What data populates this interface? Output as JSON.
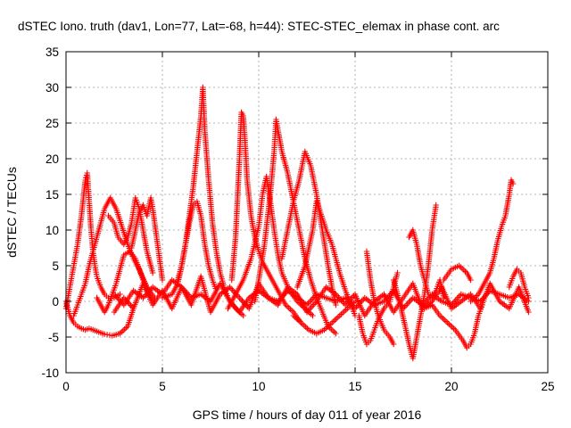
{
  "chart_data": {
    "type": "scatter",
    "title": "dSTEC Iono. truth (dav1, Lon=77, Lat=-68, h=44): STEC-STEC_elemax in phase cont. arc",
    "xlabel": "GPS time / hours of day 011 of year 2016",
    "ylabel": "dSTEC  / TECUs",
    "xlim": [
      0,
      25
    ],
    "ylim": [
      -10,
      35
    ],
    "x_ticks": [
      "0",
      "5",
      "10",
      "15",
      "20",
      "25"
    ],
    "y_ticks": [
      "-10",
      "-5",
      "0",
      "5",
      "10",
      "15",
      "20",
      "25",
      "30",
      "35"
    ],
    "grid": true,
    "marker": "+",
    "color": "#ff0000",
    "series": [
      {
        "x": [
          0.0,
          0.2,
          0.4,
          0.6,
          0.8,
          1.0,
          1.2,
          1.6,
          2.0,
          2.4,
          2.8,
          3.2,
          3.5
        ],
        "y": [
          0.0,
          -2.0,
          -3.0,
          -3.5,
          -3.8,
          -4.0,
          -3.8,
          -4.2,
          -4.6,
          -4.8,
          -4.5,
          -3.5,
          -1.0
        ]
      },
      {
        "x": [
          0.0,
          0.1,
          0.2,
          0.3,
          0.4,
          0.5,
          0.6,
          0.7,
          0.8,
          0.9,
          1.0,
          1.1,
          1.2,
          1.3,
          1.4,
          1.5,
          1.6,
          1.8,
          2.0,
          2.2,
          2.5,
          2.8
        ],
        "y": [
          -1.0,
          0.5,
          2.0,
          3.5,
          5.0,
          6.5,
          8.0,
          10.0,
          12.0,
          14.5,
          17.0,
          18.0,
          14.0,
          10.0,
          7.0,
          5.0,
          3.5,
          2.0,
          1.0,
          0.5,
          0.5,
          1.0
        ]
      },
      {
        "x": [
          0.4,
          0.6,
          0.8,
          1.0,
          1.2,
          1.4,
          1.6,
          1.8,
          2.0,
          2.3,
          2.6,
          2.9,
          3.2,
          3.5,
          3.8,
          4.2,
          4.6
        ],
        "y": [
          -2.0,
          -0.5,
          1.0,
          2.5,
          5.0,
          7.0,
          9.0,
          11.0,
          13.0,
          14.5,
          13.0,
          10.5,
          8.0,
          6.0,
          4.5,
          2.0,
          0.5
        ]
      },
      {
        "x": [
          1.6,
          1.8,
          2.0,
          2.2,
          2.4,
          2.6,
          2.8,
          3.0,
          3.3,
          3.6,
          4.0,
          4.3,
          4.6
        ],
        "y": [
          0.5,
          -0.5,
          -1.5,
          -0.5,
          1.0,
          2.5,
          4.5,
          6.5,
          7.0,
          6.0,
          3.0,
          1.0,
          0.0
        ]
      },
      {
        "x": [
          2.2,
          2.5,
          2.7,
          3.0,
          3.2,
          3.4,
          3.6,
          3.8,
          4.0,
          4.2,
          4.5
        ],
        "y": [
          12.0,
          11.0,
          9.0,
          8.0,
          9.0,
          11.0,
          14.5,
          13.0,
          10.0,
          7.0,
          4.0
        ]
      },
      {
        "x": [
          3.4,
          3.6,
          3.8,
          4.0,
          4.2,
          4.4,
          4.5,
          4.6,
          4.8,
          5.0
        ],
        "y": [
          7.5,
          10.0,
          12.5,
          13.5,
          12.0,
          14.5,
          13.0,
          11.0,
          7.0,
          3.0
        ]
      },
      {
        "x": [
          2.5,
          3.0,
          3.5,
          4.0,
          4.5,
          5.0,
          5.5,
          6.0,
          6.5,
          7.0,
          7.5,
          8.0,
          8.5,
          9.0,
          9.5,
          10.0,
          10.5,
          11.0,
          11.5,
          12.0,
          12.5,
          13.0,
          13.5,
          14.0,
          14.5,
          15.0,
          15.5,
          16.0,
          16.5,
          17.0,
          17.5,
          18.0,
          18.5,
          19.0,
          19.5,
          20.0,
          20.5,
          21.0,
          21.5,
          22.0,
          22.5,
          23.0,
          23.5,
          24.0
        ],
        "y": [
          1.0,
          -0.5,
          1.5,
          0.5,
          2.0,
          1.0,
          3.0,
          2.0,
          0.5,
          1.0,
          0.0,
          2.5,
          0.0,
          -1.5,
          0.5,
          1.5,
          0.5,
          0.0,
          1.5,
          0.5,
          -0.5,
          1.0,
          0.5,
          0.0,
          0.5,
          -1.0,
          0.5,
          -0.5,
          0.0,
          1.5,
          -1.0,
          0.5,
          -0.5,
          1.0,
          0.0,
          -0.5,
          1.0,
          0.5,
          0.0,
          1.5,
          1.0,
          0.5,
          1.0,
          0.0
        ]
      },
      {
        "x": [
          2.5,
          3.0,
          3.5,
          4.0,
          4.5,
          5.0,
          5.5,
          6.0,
          6.5,
          7.0,
          7.5,
          8.0,
          8.5,
          9.0,
          9.5,
          10.0,
          10.5,
          11.0,
          11.5,
          12.0,
          12.5,
          13.0,
          13.5,
          14.0,
          14.5,
          15.0,
          15.5,
          16.0,
          16.5,
          17.0,
          17.5,
          18.0,
          18.5,
          19.0,
          19.5,
          20.0,
          20.5,
          21.0,
          21.5,
          22.0,
          22.5,
          23.0,
          23.5,
          24.0
        ],
        "y": [
          -1.5,
          0.5,
          -1.0,
          2.5,
          -0.5,
          1.5,
          -1.0,
          2.0,
          -0.5,
          3.5,
          -1.5,
          1.0,
          2.0,
          0.5,
          -1.0,
          2.5,
          0.5,
          -0.5,
          2.0,
          1.0,
          -1.5,
          0.0,
          2.0,
          1.0,
          -0.5,
          1.0,
          -2.0,
          0.0,
          1.0,
          -1.5,
          0.5,
          2.5,
          -1.0,
          0.0,
          2.0,
          -1.0,
          0.0,
          1.0,
          -1.0,
          2.5,
          0.0,
          -1.0,
          2.0,
          -1.5
        ]
      },
      {
        "x": [
          5.0,
          5.5,
          5.8,
          6.0,
          6.2,
          6.4,
          6.6,
          6.8,
          7.0,
          7.1,
          7.2,
          7.4,
          7.6,
          7.8,
          8.0,
          8.2,
          8.4,
          8.8,
          9.2
        ],
        "y": [
          0.5,
          1.0,
          2.5,
          5.0,
          8.0,
          12.0,
          16.0,
          21.0,
          26.0,
          30.0,
          24.0,
          17.0,
          11.0,
          7.0,
          4.0,
          2.0,
          0.5,
          -1.0,
          -2.0
        ]
      },
      {
        "x": [
          5.8,
          6.0,
          6.2,
          6.4,
          6.6,
          6.8,
          7.0,
          7.2,
          7.4,
          7.6,
          7.8
        ],
        "y": [
          3.0,
          5.0,
          8.0,
          11.0,
          13.5,
          14.0,
          12.0,
          8.0,
          5.0,
          3.0,
          1.5
        ]
      },
      {
        "x": [
          8.6,
          8.8,
          9.0,
          9.1,
          9.2,
          9.3,
          9.4,
          9.6,
          9.8,
          10.0,
          10.2,
          10.4,
          10.6,
          10.8,
          11.0,
          11.2,
          11.4,
          11.8,
          12.2
        ],
        "y": [
          3.0,
          9.0,
          20.0,
          26.5,
          26.0,
          22.0,
          17.0,
          12.0,
          9.0,
          7.0,
          5.5,
          4.5,
          3.5,
          2.5,
          1.5,
          0.5,
          -0.5,
          -1.5,
          -3.0
        ]
      },
      {
        "x": [
          8.4,
          8.8,
          9.2,
          9.6,
          10.0,
          10.2,
          10.4,
          10.6,
          10.8,
          11.0,
          11.2,
          11.6,
          12.0,
          12.4,
          12.8
        ],
        "y": [
          -1.0,
          1.0,
          3.0,
          6.0,
          10.5,
          15.0,
          17.5,
          14.0,
          10.0,
          6.5,
          4.0,
          1.5,
          0.0,
          -1.0,
          -2.0
        ]
      },
      {
        "x": [
          9.8,
          10.0,
          10.3,
          10.6,
          10.8,
          10.9,
          11.0,
          11.2,
          11.5,
          11.8,
          12.1,
          12.4,
          12.7,
          13.0,
          13.3,
          13.6,
          14.0
        ],
        "y": [
          0.0,
          3.0,
          8.0,
          15.0,
          21.0,
          25.5,
          24.0,
          21.0,
          18.0,
          14.0,
          10.0,
          6.0,
          3.0,
          0.5,
          -1.5,
          -3.5,
          -4.5
        ]
      },
      {
        "x": [
          11.2,
          11.5,
          11.8,
          12.1,
          12.4,
          12.7,
          13.0,
          13.3,
          13.6,
          13.8,
          14.0
        ],
        "y": [
          6.0,
          10.0,
          14.0,
          17.0,
          21.0,
          19.0,
          15.0,
          10.0,
          5.0,
          2.0,
          -0.5
        ]
      },
      {
        "x": [
          12.0,
          12.4,
          12.8,
          13.0,
          13.2,
          13.5,
          13.8,
          14.0,
          14.2,
          14.5,
          14.8,
          15.0
        ],
        "y": [
          2.0,
          5.0,
          10.0,
          14.0,
          12.5,
          10.0,
          8.0,
          6.0,
          4.0,
          1.5,
          -0.5,
          -2.0
        ]
      },
      {
        "x": [
          11.8,
          12.2,
          12.6,
          13.0,
          13.4,
          13.8,
          14.2,
          14.6,
          15.0
        ],
        "y": [
          -2.0,
          -3.0,
          -4.0,
          -4.5,
          -4.0,
          -3.0,
          -2.0,
          -1.0,
          0.0
        ]
      },
      {
        "x": [
          15.2,
          15.4,
          15.6,
          15.8,
          16.0,
          16.2,
          16.5,
          16.8,
          17.0,
          17.2
        ],
        "y": [
          -2.0,
          -4.5,
          -6.0,
          -5.5,
          -4.0,
          -2.5,
          -1.0,
          0.0,
          2.0,
          4.0
        ]
      },
      {
        "x": [
          15.6,
          15.8,
          16.0,
          16.2,
          16.5,
          16.8,
          17.0
        ],
        "y": [
          7.0,
          3.0,
          0.0,
          -2.0,
          -4.0,
          -5.0,
          -6.0
        ]
      },
      {
        "x": [
          17.0,
          17.3,
          17.6,
          17.8,
          18.0,
          18.2,
          18.4,
          18.6,
          18.8,
          19.0,
          19.2
        ],
        "y": [
          3.0,
          0.0,
          -3.5,
          -6.0,
          -8.0,
          -5.0,
          -2.0,
          1.0,
          5.0,
          10.0,
          13.5
        ]
      },
      {
        "x": [
          17.8,
          18.0,
          18.2,
          18.4,
          18.6,
          18.8,
          19.0,
          19.2,
          19.4,
          19.6
        ],
        "y": [
          9.0,
          10.0,
          8.0,
          5.0,
          3.0,
          1.0,
          0.5,
          1.5,
          3.0,
          0.5
        ]
      },
      {
        "x": [
          18.6,
          19.0,
          19.4,
          19.8,
          20.2,
          20.6,
          20.8,
          21.0,
          21.2,
          21.4,
          21.6
        ],
        "y": [
          -1.0,
          -0.5,
          -2.0,
          -3.0,
          -4.0,
          -5.5,
          -6.5,
          -6.0,
          -4.5,
          -2.0,
          -0.5
        ]
      },
      {
        "x": [
          19.6,
          20.0,
          20.4,
          20.8,
          21.0
        ],
        "y": [
          3.0,
          4.5,
          5.0,
          4.0,
          3.0
        ]
      },
      {
        "x": [
          21.0,
          21.4,
          21.8,
          22.0,
          22.2,
          22.4,
          22.6,
          22.8,
          23.0,
          23.1,
          23.2
        ],
        "y": [
          0.0,
          1.0,
          3.0,
          4.0,
          6.0,
          8.5,
          10.5,
          12.0,
          15.0,
          17.0,
          16.5
        ]
      },
      {
        "x": [
          23.0,
          23.2,
          23.4,
          23.6,
          23.8,
          24.0
        ],
        "y": [
          2.0,
          3.5,
          4.5,
          4.0,
          2.0,
          0.5
        ]
      }
    ]
  }
}
